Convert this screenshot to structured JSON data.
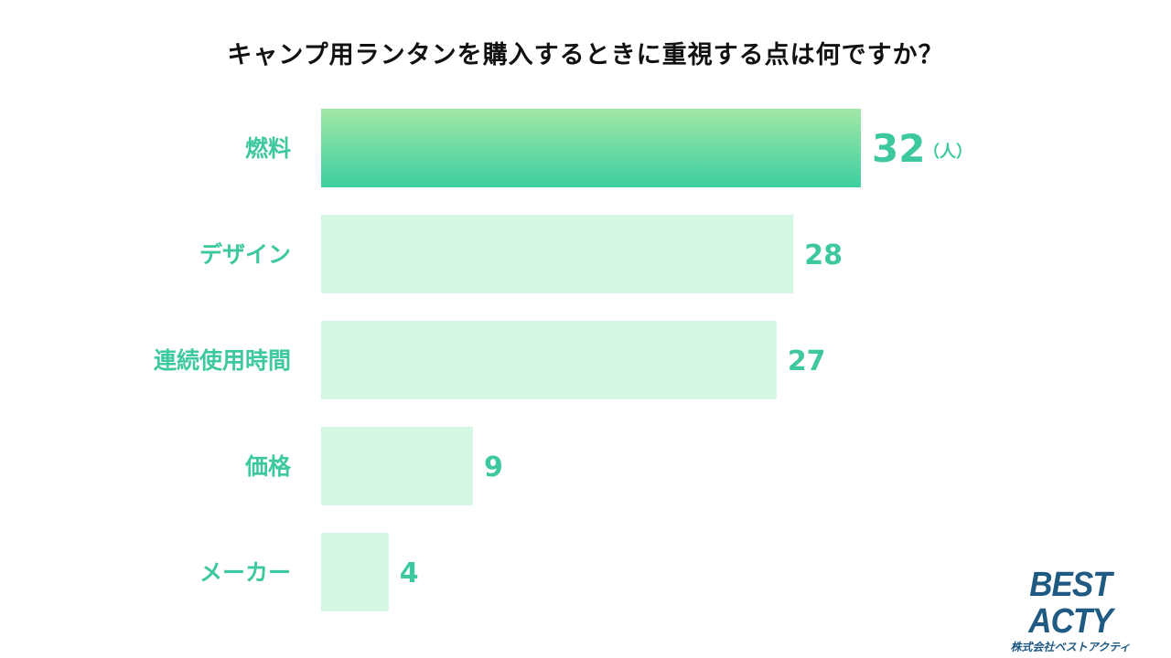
{
  "chart_data": {
    "type": "bar",
    "orientation": "horizontal",
    "title": "キャンプ用ランタンを購入するときに重視する点は何ですか？",
    "categories": [
      "燃料",
      "デザイン",
      "連続使用時間",
      "価格",
      "メーカー"
    ],
    "values": [
      32,
      28,
      27,
      9,
      4
    ],
    "unit": "（人）",
    "xlim": [
      0,
      32
    ],
    "grid": false,
    "legend": "none",
    "highlight_index": 0,
    "colors": {
      "highlight_top": "#a2e8a6",
      "highlight_bottom": "#3ccfa0",
      "bar": "#d5f6e2",
      "label": "#3ec89f",
      "title": "#111111"
    }
  },
  "logo": {
    "main": "BEST ACTY",
    "sub": "株式会社ベストアクティ"
  }
}
